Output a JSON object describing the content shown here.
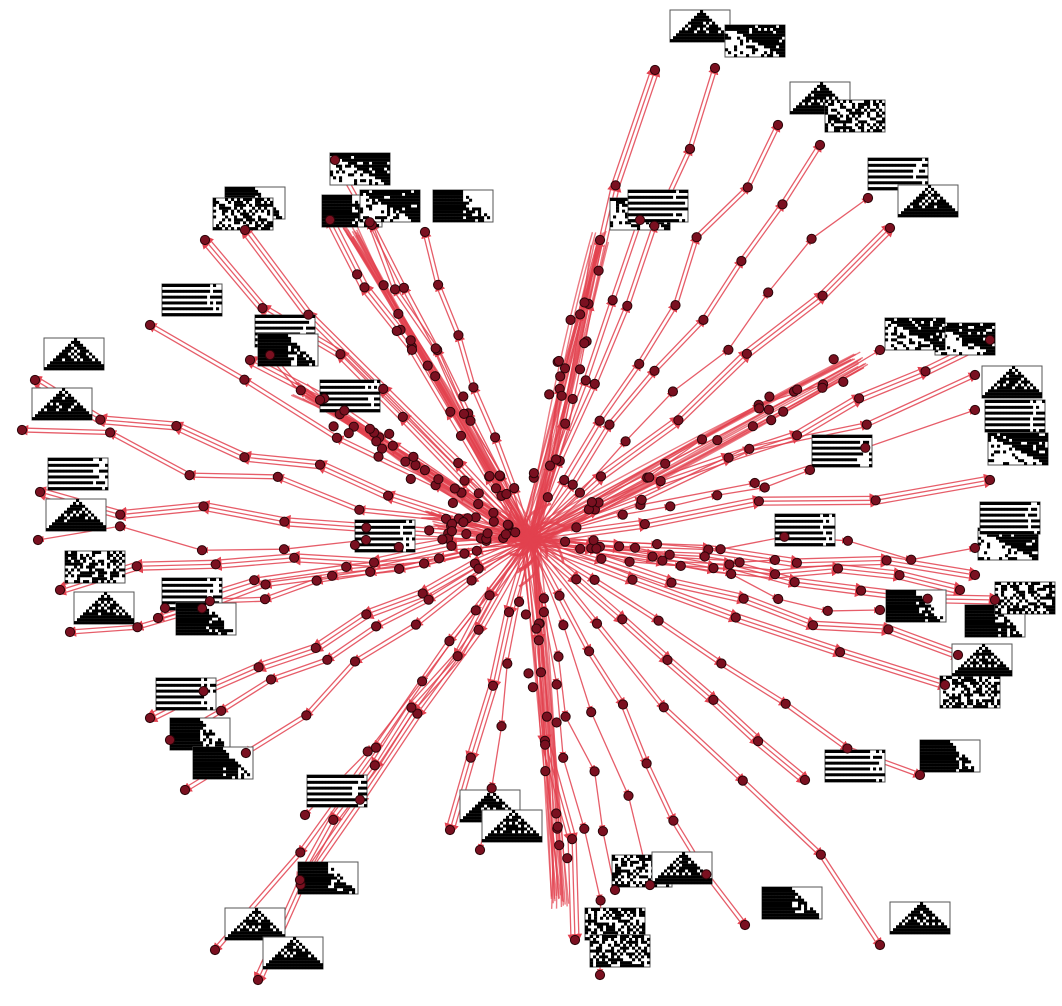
{
  "diagram": {
    "kind": "radial multiway state graph with cellular-automaton pattern thumbnails",
    "colors": {
      "background": "#ffffff",
      "edge": "#e2414f",
      "node_fill": "#7a1020",
      "node_stroke": "#2a0408",
      "thumb_black": "#000000",
      "thumb_white": "#ffffff",
      "thumb_border": "#555555"
    },
    "center_node": "hub",
    "leaf_pattern_styles": [
      "stripes",
      "triangle",
      "diagonal",
      "checker",
      "solid-split"
    ]
  }
}
